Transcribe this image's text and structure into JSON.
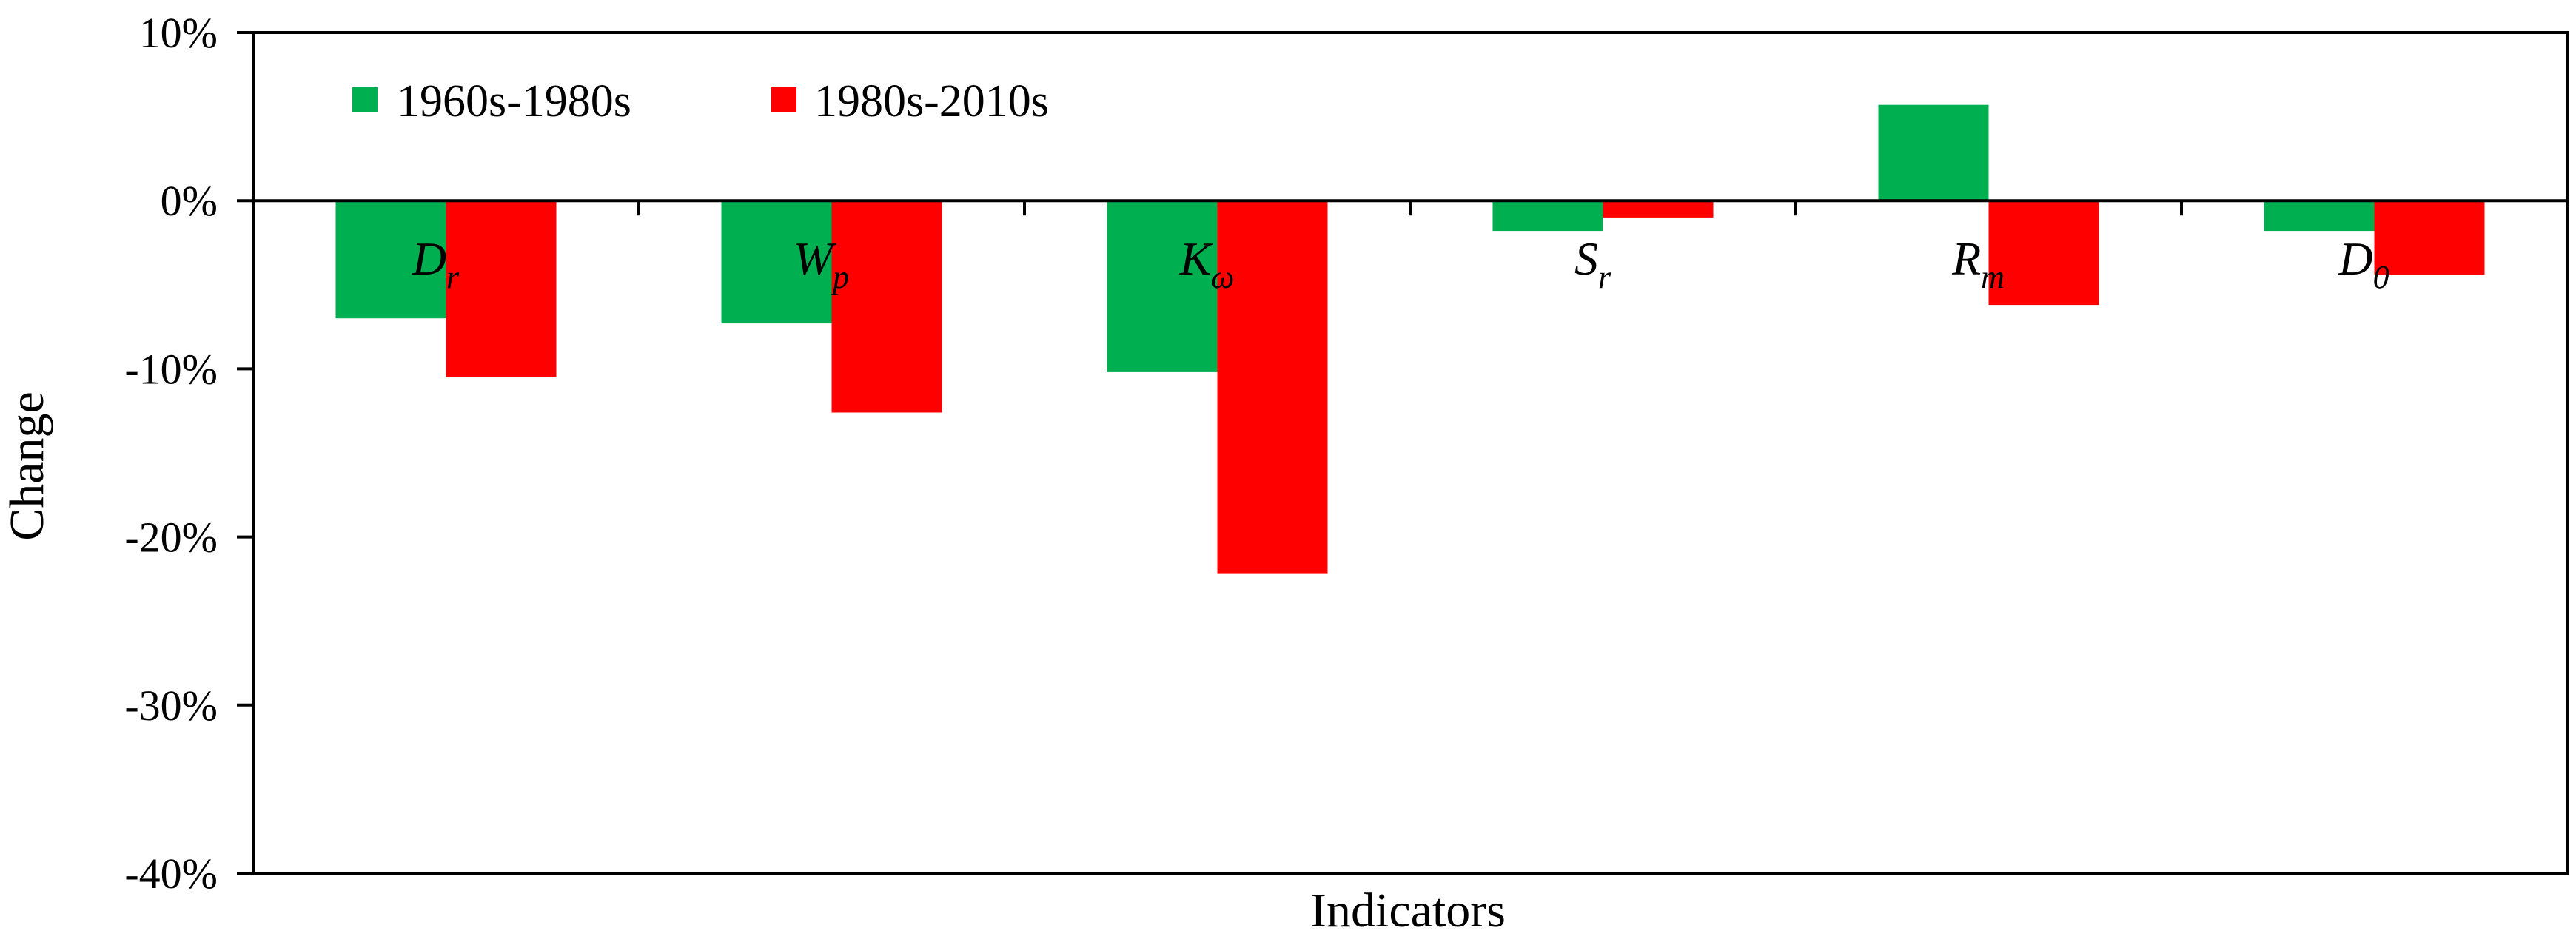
{
  "chart_data": {
    "type": "bar",
    "title": "",
    "xlabel": "Indicators",
    "ylabel": "Change",
    "ylim": [
      -0.4,
      0.1
    ],
    "yticks": [
      {
        "value": 0.1,
        "label": "10%"
      },
      {
        "value": 0.0,
        "label": "0%"
      },
      {
        "value": -0.1,
        "label": "-10%"
      },
      {
        "value": -0.2,
        "label": "-20%"
      },
      {
        "value": -0.3,
        "label": "-30%"
      },
      {
        "value": -0.4,
        "label": "-40%"
      }
    ],
    "categories": [
      {
        "main": "D",
        "sub": "r"
      },
      {
        "main": "W",
        "sub": "p"
      },
      {
        "main": "K",
        "sub": "ω"
      },
      {
        "main": "S",
        "sub": "r"
      },
      {
        "main": "R",
        "sub": "m"
      },
      {
        "main": "D",
        "sub": "0"
      }
    ],
    "series": [
      {
        "name": "1960s-1980s",
        "color": "#00b050",
        "values": [
          -0.07,
          -0.073,
          -0.102,
          -0.018,
          0.057,
          -0.018
        ]
      },
      {
        "name": "1980s-2010s",
        "color": "#ff0000",
        "values": [
          -0.105,
          -0.126,
          -0.222,
          -0.01,
          -0.062,
          -0.044
        ]
      }
    ],
    "grid": false,
    "legend_position": "top-left"
  }
}
